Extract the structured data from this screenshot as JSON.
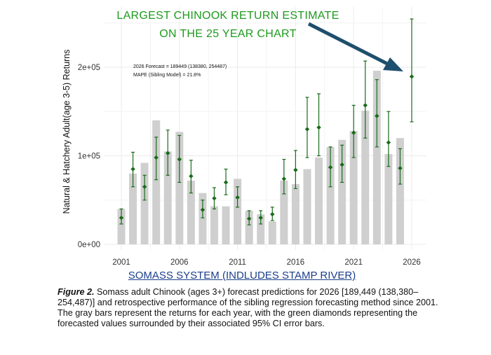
{
  "annotation": {
    "line1": "LARGEST CHINOOK RETURN ESTIMATE",
    "line2": "ON THE 25 YEAR CHART"
  },
  "subtitle": "SOMASS SYSTEM (INDLUDES STAMP RIVER)",
  "caption": {
    "label": "Figure 2.",
    "text": " Somass adult Chinook (ages 3+) forecast predictions for 2026 [189,449 (138,380– 254,487)] and retrospective performance of the sibling regression forecasting method since 2001. The gray bars represent the returns for each year, with the green diamonds representing the forecasted values surrounded by their associated 95% CI error bars."
  },
  "chart_data": {
    "type": "bar",
    "ylabel": "Natural & Hatchery Adult(age 3-5) Returns",
    "xlabel": "",
    "xlim": [
      2000,
      2027
    ],
    "ylim": [
      0,
      255000
    ],
    "x_ticks": [
      2001,
      2006,
      2011,
      2016,
      2021,
      2026
    ],
    "x_tick_labels": [
      "2001",
      "2006",
      "2011",
      "2016",
      "2021",
      "2026"
    ],
    "y_ticks": [
      0,
      100000,
      200000
    ],
    "y_tick_labels": [
      "0e+00",
      "1e+05",
      "2e+05"
    ],
    "grid": true,
    "colors": {
      "bars": "#cfcfcf",
      "forecast": "#1a6b1a",
      "annotation": "#1e9a1e",
      "arrow": "#1f4e6e",
      "subtitle": "#1a3e8c"
    },
    "info_lines": [
      "2026 Forecast = 189449 (138380, 254487)",
      "MAPE (Sibling Model) = 21.8%"
    ],
    "series": [
      {
        "name": "Returns",
        "years": [
          2001,
          2002,
          2003,
          2004,
          2005,
          2006,
          2007,
          2008,
          2009,
          2010,
          2011,
          2012,
          2013,
          2014,
          2015,
          2016,
          2017,
          2018,
          2019,
          2020,
          2021,
          2022,
          2023,
          2024,
          2025
        ],
        "values": [
          40000,
          80000,
          92000,
          140000,
          105000,
          127000,
          72000,
          58000,
          43000,
          43000,
          74000,
          38000,
          34000,
          26000,
          72000,
          68000,
          85000,
          98000,
          110000,
          118000,
          128000,
          151000,
          196000,
          102000,
          120000
        ]
      },
      {
        "name": "Forecast",
        "years": [
          2001,
          2002,
          2003,
          2004,
          2005,
          2006,
          2007,
          2008,
          2009,
          2010,
          2011,
          2012,
          2013,
          2014,
          2015,
          2016,
          2017,
          2018,
          2019,
          2020,
          2021,
          2022,
          2023,
          2024,
          2025,
          2026
        ],
        "values": [
          30000,
          85000,
          65000,
          98000,
          103000,
          96000,
          77000,
          39000,
          52000,
          70000,
          53000,
          29000,
          30000,
          34000,
          74000,
          84000,
          130000,
          132000,
          87000,
          90000,
          126000,
          157000,
          145000,
          115000,
          86000,
          189449
        ],
        "lower": [
          23000,
          65000,
          50000,
          73000,
          78000,
          70000,
          58000,
          30000,
          40000,
          56000,
          42000,
          22000,
          23000,
          27000,
          57000,
          63000,
          98000,
          100000,
          65000,
          70000,
          98000,
          120000,
          110000,
          88000,
          68000,
          138380
        ],
        "upper": [
          40000,
          104000,
          78000,
          121000,
          129000,
          123000,
          95000,
          50000,
          64000,
          85000,
          65000,
          38000,
          38000,
          42000,
          96000,
          106000,
          166000,
          170000,
          110000,
          112000,
          157000,
          207000,
          186000,
          150000,
          108000,
          254487
        ]
      }
    ]
  }
}
